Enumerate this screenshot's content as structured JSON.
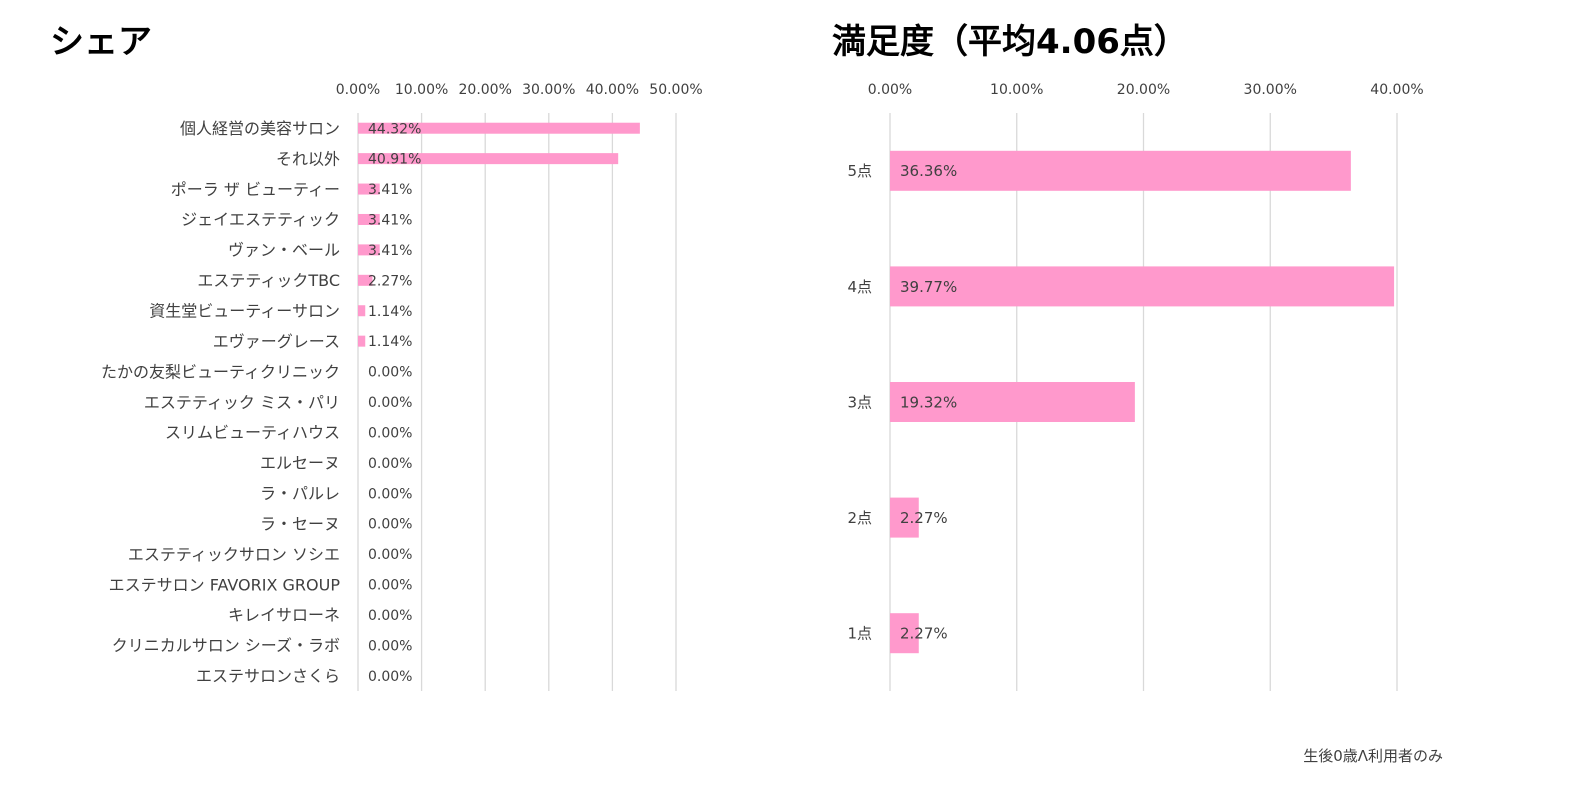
{
  "left_title": "シェア",
  "right_title": "満足度（平均4.06点）",
  "footnote": "生後0歳Λ利用者のみ",
  "colors": {
    "bar": "#ff99cc",
    "grid": "#d9d9d9",
    "text": "#404040"
  },
  "chart_data": [
    {
      "type": "bar",
      "orientation": "horizontal",
      "title": "シェア",
      "categories": [
        "個人経営の美容サロン",
        "それ以外",
        "ポーラ ザ ビューティー",
        "ジェイエステティック",
        "ヴァン・ベール",
        "エステティックTBC",
        "資生堂ビューティーサロン",
        "エヴァーグレース",
        "たかの友梨ビューティクリニック",
        "エステティック ミス・パリ",
        "スリムビューティハウス",
        "エルセーヌ",
        "ラ・パルレ",
        "ラ・セーヌ",
        "エステティックサロン ソシエ",
        "エステサロン FAVORIX GROUP",
        "キレイサローネ",
        "クリニカルサロン シーズ・ラボ",
        "エステサロンさくら"
      ],
      "values": [
        44.32,
        40.91,
        3.41,
        3.41,
        3.41,
        2.27,
        1.14,
        1.14,
        0,
        0,
        0,
        0,
        0,
        0,
        0,
        0,
        0,
        0,
        0
      ],
      "data_labels": [
        "44.32%",
        "40.91%",
        "3.41%",
        "3.41%",
        "3.41%",
        "2.27%",
        "1.14%",
        "1.14%",
        "0.00%",
        "0.00%",
        "0.00%",
        "0.00%",
        "0.00%",
        "0.00%",
        "0.00%",
        "0.00%",
        "0.00%",
        "0.00%",
        "0.00%"
      ],
      "ticks": [
        "0.00%",
        "10.00%",
        "20.00%",
        "30.00%",
        "40.00%",
        "50.00%"
      ],
      "tick_values": [
        0,
        10,
        20,
        30,
        40,
        50
      ],
      "xlim": [
        0,
        50
      ],
      "grid": true,
      "legend": "none"
    },
    {
      "type": "bar",
      "orientation": "horizontal",
      "title": "満足度（平均4.06点）",
      "categories": [
        "5点",
        "4点",
        "3点",
        "2点",
        "1点"
      ],
      "values": [
        36.36,
        39.77,
        19.32,
        2.27,
        2.27
      ],
      "data_labels": [
        "36.36%",
        "39.77%",
        "19.32%",
        "2.27%",
        "2.27%"
      ],
      "ticks": [
        "0.00%",
        "10.00%",
        "20.00%",
        "30.00%",
        "40.00%"
      ],
      "tick_values": [
        0,
        10,
        20,
        30,
        40
      ],
      "xlim": [
        0,
        40
      ],
      "grid": true,
      "legend": "none"
    }
  ]
}
